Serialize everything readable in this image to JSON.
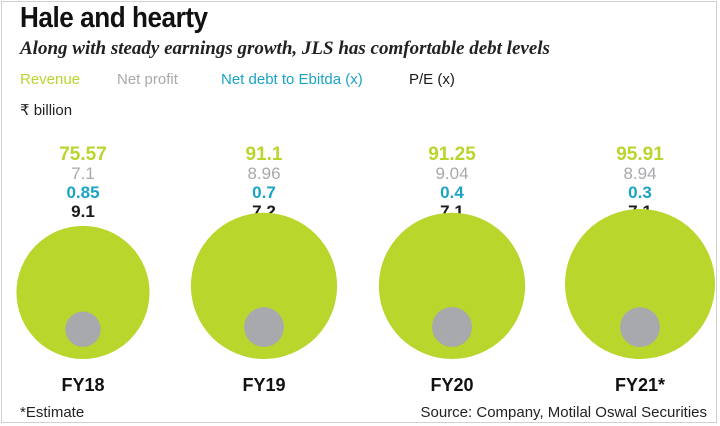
{
  "title": "Hale and hearty",
  "subtitle": "Along with steady earnings growth, JLS has comfortable debt levels",
  "legend": {
    "revenue": "Revenue",
    "net_profit": "Net profit",
    "net_debt": "Net debt to Ebitda (x)",
    "pe": "P/E (x)"
  },
  "unit": "₹ billion",
  "colors": {
    "revenue": "#b8d62b",
    "net_profit": "#a7a9ac",
    "net_debt": "#1ba3c6",
    "pe": "#1a1a1a"
  },
  "chart_data": {
    "type": "bubble",
    "categories": [
      "FY18",
      "FY19",
      "FY20",
      "FY21*"
    ],
    "series": [
      {
        "name": "Revenue",
        "values": [
          "75.57",
          "91.1",
          "91.25",
          "95.91"
        ]
      },
      {
        "name": "Net profit",
        "values": [
          "7.1",
          "8.96",
          "9.04",
          "8.94"
        ]
      },
      {
        "name": "Net debt to Ebitda (x)",
        "values": [
          "0.85",
          "0.7",
          "0.4",
          "0.3"
        ]
      },
      {
        "name": "P/E (x)",
        "values": [
          "9.1",
          "7.2",
          "7.1",
          "7.1"
        ]
      }
    ]
  },
  "footer": {
    "note": "*Estimate",
    "source": "Source: Company, Motilal Oswal Securities"
  }
}
